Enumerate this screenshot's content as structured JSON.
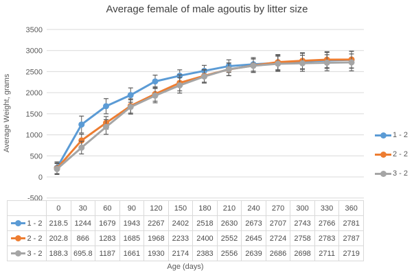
{
  "title": "Average female of male agoutis by litter size",
  "y_axis": {
    "label": "Average Weight, grams",
    "ticks": [
      3500,
      3000,
      2500,
      2000,
      1500,
      1000,
      500,
      0,
      -500
    ]
  },
  "x_axis": {
    "label": "Age (days)"
  },
  "legend": [
    {
      "label": "1 - 2",
      "color": "#5B9BD5"
    },
    {
      "label": "2 - 2",
      "color": "#ED7D31"
    },
    {
      "label": "3 - 2",
      "color": "#A5A5A5"
    }
  ],
  "colors": {
    "series_blue": "#5B9BD5",
    "series_orange": "#ED7D31",
    "series_gray": "#A5A5A5",
    "gridline": "#D9D9D9",
    "error_bar": "#595959",
    "table_border": "#D9D9D9",
    "text": "#595959"
  },
  "chart_data": {
    "type": "line",
    "title": "Average female of male agoutis by litter size",
    "xlabel": "Age (days)",
    "ylabel": "Average Weight, grams",
    "x": [
      0,
      30,
      60,
      90,
      120,
      150,
      180,
      210,
      240,
      270,
      300,
      330,
      360
    ],
    "series": [
      {
        "name": "1 - 2",
        "color": "#5B9BD5",
        "values": [
          218.5,
          1244,
          1679,
          1943,
          2267,
          2402,
          2518,
          2630,
          2673,
          2707,
          2743,
          2766,
          2781
        ],
        "errors_estimated": [
          140,
          200,
          180,
          170,
          150,
          140,
          130,
          150,
          160,
          180,
          190,
          190,
          200
        ]
      },
      {
        "name": "2 - 2",
        "color": "#ED7D31",
        "values": [
          202.8,
          866,
          1283,
          1685,
          1968,
          2233,
          2400,
          2552,
          2645,
          2724,
          2758,
          2783,
          2787
        ],
        "errors_estimated": [
          130,
          150,
          150,
          170,
          170,
          190,
          150,
          150,
          160,
          180,
          190,
          190,
          200
        ]
      },
      {
        "name": "3 - 2",
        "color": "#A5A5A5",
        "values": [
          188.3,
          695.8,
          1187,
          1661,
          1930,
          2174,
          2383,
          2556,
          2639,
          2686,
          2698,
          2711,
          2719
        ],
        "errors_estimated": [
          130,
          150,
          175,
          170,
          170,
          185,
          155,
          150,
          160,
          180,
          190,
          190,
          200
        ]
      }
    ],
    "ylim": [
      -500,
      3500
    ],
    "grid": true,
    "error_bars": true,
    "markers": "circle",
    "legend_position": "right",
    "data_table_shown": true
  }
}
